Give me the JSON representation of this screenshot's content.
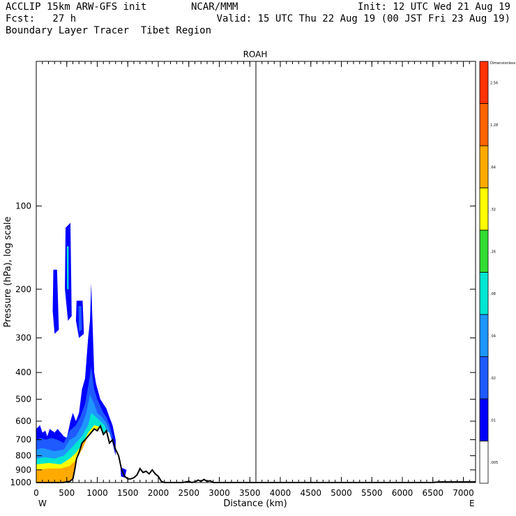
{
  "header": {
    "line1_left": "ACCLIP 15km ARW-GFS init",
    "line1_mid": "NCAR/MMM",
    "line1_right": "Init: 12 UTC Wed 21 Aug 19",
    "line2_left": "Fcst:   27 h",
    "line2_right": "Valid: 15 UTC Thu 22 Aug 19 (00 JST Fri 23 Aug 19)",
    "line3_left": "Boundary Layer Tracer  Tibet Region"
  },
  "chart_data": {
    "type": "heatmap",
    "title": "ROAH",
    "xlabel": "Distance (km)",
    "ylabel": "Pressure (hPa), log scale",
    "xlim": [
      0,
      7200
    ],
    "ylim_pressure": [
      1000,
      30
    ],
    "log_y": true,
    "x_ticks": [
      0,
      500,
      1000,
      1500,
      2000,
      2500,
      3000,
      3500,
      4000,
      4500,
      5000,
      5500,
      6000,
      6500,
      7000
    ],
    "y_ticks": [
      100,
      200,
      300,
      400,
      500,
      600,
      700,
      800,
      900,
      1000
    ],
    "x_end_labels": {
      "left": "W",
      "right": "E"
    },
    "marker_line_km": 3600,
    "colorbar": {
      "title": "Dimensionless",
      "levels": [
        ".005",
        ".01",
        ".02",
        ".04",
        ".08",
        ".16",
        ".32",
        ".64",
        "1.28",
        "2.56"
      ],
      "colors": [
        "#ffffff",
        "#0000ff",
        "#1e5aff",
        "#1e96ff",
        "#00e6d2",
        "#32dc32",
        "#ffff00",
        "#ffaa00",
        "#ff6400",
        "#ff3200"
      ]
    },
    "terrain_profile": {
      "x_km": [
        0,
        100,
        200,
        300,
        400,
        450,
        500,
        550,
        600,
        630,
        660,
        700,
        750,
        800,
        850,
        900,
        950,
        1000,
        1050,
        1100,
        1150,
        1200,
        1250,
        1300,
        1350,
        1400,
        1450,
        1500,
        1550,
        1600,
        1650,
        1700,
        1750,
        1800,
        1850,
        1900,
        1950,
        2000,
        2050,
        2100,
        2200,
        2300,
        2400,
        2500,
        2550,
        2600,
        2650,
        2700,
        2750,
        2800,
        2850,
        2900,
        3000,
        3500,
        4000,
        4500,
        5000,
        5500,
        6000,
        6500,
        6600,
        6700,
        7000,
        7200
      ],
      "p_hpa": [
        1000,
        1000,
        1000,
        1000,
        1000,
        998,
        995,
        990,
        970,
        900,
        820,
        780,
        720,
        700,
        680,
        660,
        640,
        650,
        625,
        670,
        650,
        720,
        700,
        760,
        800,
        900,
        950,
        970,
        970,
        960,
        940,
        890,
        920,
        910,
        930,
        900,
        930,
        950,
        990,
        1000,
        1000,
        1000,
        1000,
        990,
        1000,
        995,
        980,
        990,
        975,
        990,
        985,
        1000,
        1000,
        1000,
        1000,
        1000,
        1000,
        1000,
        1000,
        1000,
        995,
        995,
        995,
        995
      ]
    },
    "shaded_regions": [
      {
        "level": ".01",
        "polygon": [
          [
            0,
            1000
          ],
          [
            0,
            640
          ],
          [
            60,
            620
          ],
          [
            100,
            660
          ],
          [
            150,
            650
          ],
          [
            180,
            680
          ],
          [
            220,
            640
          ],
          [
            260,
            650
          ],
          [
            300,
            660
          ],
          [
            350,
            640
          ],
          [
            400,
            660
          ],
          [
            450,
            680
          ],
          [
            500,
            690
          ],
          [
            560,
            600
          ],
          [
            600,
            560
          ],
          [
            650,
            600
          ],
          [
            700,
            560
          ],
          [
            750,
            460
          ],
          [
            800,
            420
          ],
          [
            850,
            300
          ],
          [
            880,
            260
          ],
          [
            900,
            190
          ],
          [
            950,
            400
          ],
          [
            980,
            440
          ],
          [
            1050,
            500
          ],
          [
            1100,
            520
          ],
          [
            1150,
            540
          ],
          [
            1200,
            580
          ],
          [
            1250,
            620
          ],
          [
            1300,
            700
          ],
          [
            1300,
            800
          ],
          [
            1250,
            720
          ],
          [
            1200,
            660
          ],
          [
            1150,
            650
          ],
          [
            1100,
            670
          ],
          [
            1050,
            625
          ],
          [
            1000,
            650
          ],
          [
            950,
            640
          ],
          [
            900,
            660
          ],
          [
            850,
            680
          ],
          [
            800,
            700
          ],
          [
            750,
            720
          ],
          [
            700,
            780
          ],
          [
            660,
            820
          ],
          [
            630,
            900
          ],
          [
            600,
            970
          ],
          [
            550,
            990
          ],
          [
            500,
            995
          ],
          [
            450,
            998
          ],
          [
            400,
            1000
          ]
        ]
      },
      {
        "level": ".02",
        "polygon": [
          [
            0,
            1000
          ],
          [
            0,
            700
          ],
          [
            80,
            690
          ],
          [
            150,
            700
          ],
          [
            250,
            690
          ],
          [
            350,
            700
          ],
          [
            450,
            720
          ],
          [
            550,
            650
          ],
          [
            650,
            620
          ],
          [
            720,
            580
          ],
          [
            800,
            520
          ],
          [
            850,
            450
          ],
          [
            900,
            380
          ],
          [
            950,
            460
          ],
          [
            1000,
            500
          ],
          [
            1100,
            560
          ],
          [
            1150,
            580
          ],
          [
            1200,
            620
          ],
          [
            1250,
            680
          ],
          [
            1250,
            720
          ],
          [
            1200,
            660
          ],
          [
            1150,
            650
          ],
          [
            1100,
            670
          ],
          [
            1050,
            625
          ],
          [
            1000,
            650
          ],
          [
            950,
            640
          ],
          [
            900,
            660
          ],
          [
            850,
            680
          ],
          [
            800,
            700
          ],
          [
            750,
            720
          ],
          [
            700,
            780
          ],
          [
            660,
            820
          ],
          [
            630,
            900
          ],
          [
            600,
            970
          ],
          [
            550,
            990
          ],
          [
            500,
            995
          ],
          [
            450,
            998
          ],
          [
            400,
            1000
          ]
        ]
      },
      {
        "level": ".04",
        "polygon": [
          [
            0,
            1000
          ],
          [
            0,
            760
          ],
          [
            100,
            750
          ],
          [
            200,
            760
          ],
          [
            300,
            770
          ],
          [
            450,
            760
          ],
          [
            550,
            700
          ],
          [
            650,
            680
          ],
          [
            750,
            620
          ],
          [
            820,
            560
          ],
          [
            880,
            480
          ],
          [
            950,
            520
          ],
          [
            1000,
            560
          ],
          [
            1080,
            580
          ],
          [
            1150,
            610
          ],
          [
            1200,
            650
          ],
          [
            1200,
            660
          ],
          [
            1150,
            650
          ],
          [
            1100,
            670
          ],
          [
            1050,
            625
          ],
          [
            1000,
            650
          ],
          [
            950,
            640
          ],
          [
            900,
            660
          ],
          [
            850,
            680
          ],
          [
            800,
            700
          ],
          [
            750,
            720
          ],
          [
            700,
            780
          ],
          [
            660,
            820
          ],
          [
            630,
            900
          ],
          [
            600,
            970
          ],
          [
            550,
            990
          ],
          [
            500,
            995
          ],
          [
            450,
            998
          ],
          [
            400,
            1000
          ]
        ]
      },
      {
        "level": ".08",
        "polygon": [
          [
            0,
            1000
          ],
          [
            0,
            820
          ],
          [
            150,
            810
          ],
          [
            300,
            820
          ],
          [
            450,
            800
          ],
          [
            550,
            760
          ],
          [
            650,
            720
          ],
          [
            750,
            680
          ],
          [
            850,
            620
          ],
          [
            900,
            560
          ],
          [
            980,
            580
          ],
          [
            1050,
            600
          ],
          [
            1120,
            620
          ],
          [
            1150,
            650
          ],
          [
            1100,
            670
          ],
          [
            1050,
            625
          ],
          [
            1000,
            650
          ],
          [
            950,
            640
          ],
          [
            900,
            660
          ],
          [
            850,
            680
          ],
          [
            800,
            700
          ],
          [
            750,
            720
          ],
          [
            700,
            780
          ],
          [
            660,
            820
          ],
          [
            630,
            900
          ],
          [
            600,
            970
          ],
          [
            550,
            990
          ],
          [
            500,
            995
          ],
          [
            450,
            998
          ],
          [
            400,
            1000
          ]
        ]
      },
      {
        "level": ".32",
        "polygon": [
          [
            0,
            1000
          ],
          [
            0,
            860
          ],
          [
            200,
            850
          ],
          [
            400,
            860
          ],
          [
            550,
            820
          ],
          [
            650,
            780
          ],
          [
            750,
            730
          ],
          [
            850,
            660
          ],
          [
            950,
            620
          ],
          [
            1050,
            630
          ],
          [
            1100,
            670
          ],
          [
            1050,
            625
          ],
          [
            1000,
            650
          ],
          [
            950,
            640
          ],
          [
            900,
            660
          ],
          [
            850,
            680
          ],
          [
            800,
            700
          ],
          [
            750,
            720
          ],
          [
            700,
            780
          ],
          [
            660,
            820
          ],
          [
            630,
            900
          ],
          [
            600,
            970
          ],
          [
            550,
            990
          ],
          [
            500,
            995
          ],
          [
            450,
            998
          ],
          [
            400,
            1000
          ]
        ]
      },
      {
        "level": ".64",
        "polygon": [
          [
            0,
            1000
          ],
          [
            0,
            900
          ],
          [
            200,
            890
          ],
          [
            400,
            890
          ],
          [
            550,
            870
          ],
          [
            650,
            830
          ],
          [
            750,
            760
          ],
          [
            850,
            680
          ],
          [
            950,
            645
          ],
          [
            1000,
            650
          ],
          [
            950,
            640
          ],
          [
            900,
            660
          ],
          [
            850,
            680
          ],
          [
            800,
            700
          ],
          [
            750,
            720
          ],
          [
            700,
            780
          ],
          [
            660,
            820
          ],
          [
            630,
            900
          ],
          [
            600,
            970
          ],
          [
            550,
            990
          ],
          [
            500,
            995
          ],
          [
            450,
            998
          ],
          [
            400,
            1000
          ]
        ]
      },
      {
        "level": ".01",
        "polygon": [
          [
            280,
            170
          ],
          [
            340,
            170
          ],
          [
            370,
            280
          ],
          [
            300,
            290
          ],
          [
            270,
            240
          ]
        ]
      },
      {
        "level": ".01",
        "polygon": [
          [
            480,
            120
          ],
          [
            560,
            115
          ],
          [
            580,
            250
          ],
          [
            520,
            260
          ],
          [
            470,
            200
          ]
        ]
      },
      {
        "level": ".08",
        "polygon": [
          [
            500,
            140
          ],
          [
            530,
            140
          ],
          [
            530,
            200
          ],
          [
            505,
            200
          ]
        ]
      },
      {
        "level": ".01",
        "polygon": [
          [
            660,
            220
          ],
          [
            760,
            220
          ],
          [
            780,
            290
          ],
          [
            700,
            300
          ],
          [
            650,
            260
          ]
        ]
      },
      {
        "level": ".02",
        "polygon": [
          [
            690,
            230
          ],
          [
            740,
            230
          ],
          [
            750,
            280
          ],
          [
            700,
            285
          ]
        ]
      },
      {
        "level": ".01",
        "polygon": [
          [
            1380,
            880
          ],
          [
            1480,
            900
          ],
          [
            1450,
            960
          ],
          [
            1390,
            950
          ]
        ]
      }
    ]
  }
}
